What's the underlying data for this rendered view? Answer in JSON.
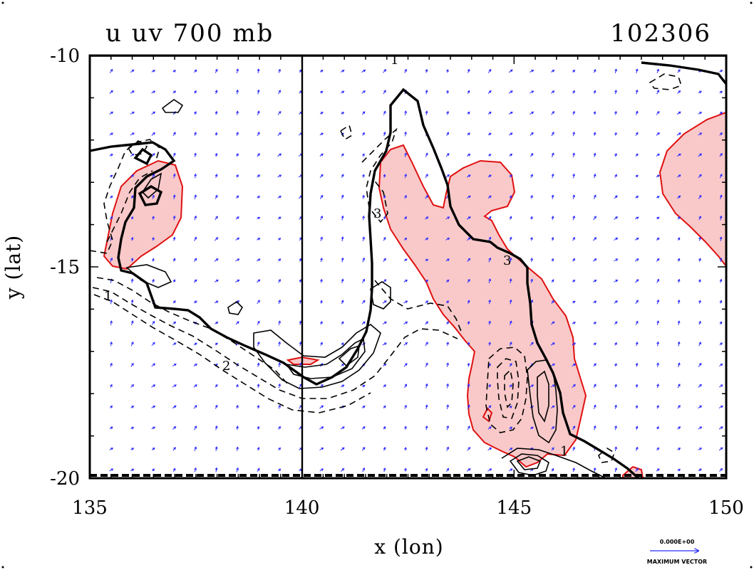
{
  "chart_data": {
    "type": "contour",
    "title": "u uv 700 mb",
    "date_label": "102306",
    "xlabel": "x (lon)",
    "ylabel": "y (lat)",
    "xlim": [
      135,
      150
    ],
    "ylim": [
      -20,
      -10
    ],
    "x_ticks": [
      "135",
      "140",
      "145",
      "150"
    ],
    "y_ticks": [
      "-10",
      "-15",
      "-20"
    ],
    "x_tick_values": [
      135,
      140,
      145,
      150
    ],
    "y_tick_values": [
      -10,
      -15,
      -20
    ],
    "contour_labels": [
      "1",
      "3",
      "2",
      "1",
      "3",
      "1"
    ],
    "vector_legend": {
      "magnitude": "0.000E+00",
      "caption": "MAXIMUM VECTOR"
    },
    "colors": {
      "shade": "#f9c9c9",
      "shade_edge": "#e01010",
      "vectors": "#2a2aff",
      "contours": "#000000"
    }
  }
}
